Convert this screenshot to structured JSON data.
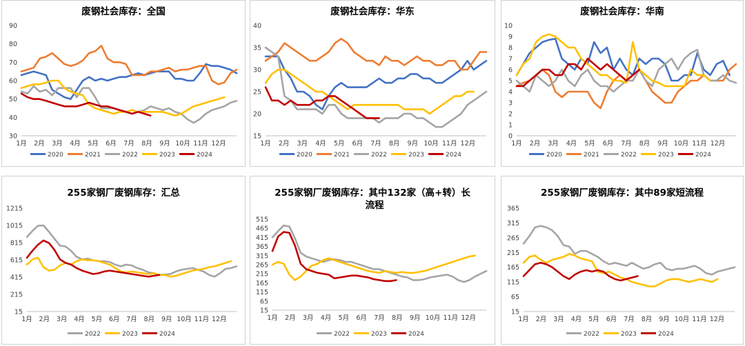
{
  "colors": {
    "series": {
      "2020": "#4472C4",
      "2021": "#ED7D31",
      "2022": "#A5A5A5",
      "2023": "#FFC000",
      "2024": "#C00000"
    },
    "grid": "#d9d9d9",
    "text": "#404040"
  },
  "chart_data": [
    {
      "type": "line",
      "title": "废钢社会库存：全国",
      "x_ticks": [
        "1月",
        "2月",
        "3月",
        "4月",
        "5月",
        "6月",
        "7月",
        "8月",
        "9月",
        "10月",
        "11月",
        "12月"
      ],
      "ylim": [
        30,
        90
      ],
      "y_ticks": [
        30,
        40,
        50,
        60,
        70,
        80,
        90
      ],
      "legend_position": "bottom",
      "grid": false,
      "series": [
        {
          "name": "2020",
          "values": [
            63,
            64,
            65,
            64,
            63,
            55,
            53,
            51,
            50,
            55,
            60,
            62,
            60,
            61,
            60,
            61,
            62,
            62,
            63,
            64,
            63,
            64,
            65,
            65,
            65,
            61,
            61,
            60,
            60,
            64,
            69,
            68,
            68,
            67,
            66,
            64
          ]
        },
        {
          "name": "2021",
          "values": [
            65,
            66,
            67,
            72,
            73,
            75,
            72,
            69,
            68,
            69,
            71,
            75,
            76,
            79,
            72,
            70,
            70,
            69,
            63,
            63,
            63,
            65,
            65,
            66,
            67,
            65,
            66,
            66,
            67,
            68,
            68,
            60,
            58,
            59,
            64,
            66
          ]
        },
        {
          "name": "2022",
          "values": [
            54,
            53,
            57,
            54,
            55,
            52,
            56,
            56,
            56,
            51,
            56,
            56,
            51,
            45,
            45,
            45,
            44,
            43,
            42,
            43,
            44,
            46,
            45,
            44,
            45,
            43,
            42,
            39,
            37,
            39,
            42,
            44,
            45,
            46,
            48,
            49
          ]
        },
        {
          "name": "2023",
          "values": [
            56,
            57,
            58,
            58,
            59,
            60,
            60,
            56,
            54,
            53,
            52,
            47,
            45,
            44,
            43,
            42,
            43,
            43,
            44,
            43,
            43,
            43,
            43,
            43,
            42,
            41,
            42,
            44,
            46,
            47,
            48,
            49,
            50,
            51
          ]
        },
        {
          "name": "2024",
          "values": [
            53,
            51,
            50,
            50,
            49,
            48,
            47,
            46,
            46,
            46,
            47,
            48,
            47,
            46,
            46,
            45,
            44,
            43,
            42,
            43,
            42,
            41
          ]
        }
      ]
    },
    {
      "type": "line",
      "title": "废钢社会库存：华东",
      "x_ticks": [
        "1月",
        "2月",
        "3月",
        "4月",
        "5月",
        "6月",
        "7月",
        "8月",
        "9月",
        "10月",
        "11月",
        "12月"
      ],
      "ylim": [
        15,
        40
      ],
      "y_ticks": [
        15,
        20,
        25,
        30,
        35,
        40
      ],
      "legend_position": "bottom",
      "grid": false,
      "series": [
        {
          "name": "2020",
          "values": [
            33,
            33,
            33,
            30,
            28,
            25,
            25,
            24,
            22,
            21,
            24,
            26,
            27,
            26,
            26,
            26,
            26,
            27,
            28,
            27,
            27,
            28,
            28,
            29,
            29,
            28,
            28,
            27,
            27,
            28,
            29,
            30,
            32,
            30,
            31,
            32
          ]
        },
        {
          "name": "2021",
          "values": [
            32,
            33,
            34,
            36,
            35,
            34,
            33,
            32,
            32,
            33,
            34,
            36,
            37,
            36,
            34,
            33,
            32,
            32,
            31,
            33,
            32,
            32,
            31,
            32,
            33,
            32,
            32,
            31,
            31,
            32,
            32,
            30,
            30,
            32,
            34,
            34
          ]
        },
        {
          "name": "2022",
          "values": [
            35,
            34,
            33,
            24,
            23,
            21,
            21,
            21,
            21,
            20,
            22,
            22,
            20,
            19,
            19,
            19,
            19,
            19,
            18,
            19,
            19,
            19,
            20,
            20,
            19,
            19,
            18,
            17,
            17,
            18,
            19,
            20,
            22,
            23,
            24,
            25
          ]
        },
        {
          "name": "2023",
          "values": [
            27,
            29,
            30,
            30,
            29,
            28,
            27,
            26,
            25,
            25,
            24,
            23,
            22,
            21,
            22,
            22,
            22,
            22,
            22,
            22,
            22,
            22,
            21,
            21,
            21,
            21,
            20,
            21,
            22,
            23,
            24,
            24,
            25,
            25
          ]
        },
        {
          "name": "2024",
          "values": [
            26,
            23,
            23,
            22,
            23,
            22,
            22,
            22,
            23,
            23,
            24,
            24,
            23,
            22,
            21,
            20,
            19,
            19,
            19
          ]
        }
      ]
    },
    {
      "type": "line",
      "title": "废钢社会库存：华南",
      "x_ticks": [
        "1月",
        "2月",
        "3月",
        "4月",
        "5月",
        "6月",
        "7月",
        "8月",
        "9月",
        "10月",
        "11月",
        "12月"
      ],
      "ylim": [
        0,
        10
      ],
      "y_ticks": [
        0,
        1,
        2,
        3,
        4,
        5,
        6,
        7,
        8,
        9,
        10
      ],
      "legend_position": "bottom",
      "grid": false,
      "series": [
        {
          "name": "2020",
          "values": [
            5.5,
            6.5,
            7.5,
            8.0,
            8.5,
            8.7,
            8.8,
            7.0,
            6.5,
            6.0,
            7.0,
            6.5,
            8.5,
            7.5,
            8.0,
            6.0,
            7.0,
            6.0,
            5.5,
            7.0,
            6.5,
            7.0,
            7.0,
            6.5,
            5.0,
            5.0,
            5.5,
            5.5,
            7.5,
            6.0,
            5.5,
            6.5,
            6.8,
            5.5
          ]
        },
        {
          "name": "2021",
          "values": [
            4.5,
            4.8,
            5.0,
            5.5,
            6.0,
            5.5,
            4.0,
            3.5,
            4.0,
            4.0,
            4.0,
            4.0,
            3.0,
            2.5,
            4.0,
            5.0,
            5.5,
            5.0,
            5.5,
            6.0,
            5.0,
            4.0,
            3.5,
            3.0,
            3.0,
            4.0,
            4.5,
            5.0,
            5.0,
            5.5,
            5.0,
            5.0,
            5.0,
            6.0,
            6.5
          ]
        },
        {
          "name": "2022",
          "values": [
            5.0,
            4.5,
            4.0,
            5.5,
            5.0,
            4.5,
            5.0,
            6.0,
            5.0,
            4.5,
            5.5,
            6.0,
            5.0,
            4.5,
            4.5,
            4.0,
            4.5,
            5.0,
            5.0,
            6.0,
            5.0,
            4.5,
            6.0,
            6.5,
            7.0,
            6.0,
            7.0,
            7.5,
            7.8,
            5.5,
            5.0,
            5.0,
            5.5,
            5.0,
            4.8
          ]
        },
        {
          "name": "2023",
          "values": [
            5.5,
            6.5,
            7.0,
            8.5,
            9.0,
            9.2,
            9.0,
            8.5,
            8.0,
            8.0,
            7.0,
            6.5,
            6.0,
            5.5,
            5.5,
            5.0,
            5.0,
            4.8,
            8.5,
            6.0,
            5.5,
            5.0,
            4.8,
            4.5,
            4.5,
            4.5,
            4.5,
            6.0,
            5.5,
            5.5,
            5.0
          ]
        },
        {
          "name": "2024",
          "values": [
            4.5,
            4.5,
            5.0,
            5.5,
            6.0,
            6.0,
            5.5,
            5.5,
            6.5,
            6.5,
            6.0,
            7.0,
            6.5,
            6.0,
            6.5,
            6.0,
            5.5,
            5.0,
            5.5,
            6.0
          ]
        }
      ]
    },
    {
      "type": "line",
      "title": "255家钢厂废钢库存：汇总",
      "x_ticks": [
        "1月",
        "2月",
        "3月",
        "4月",
        "5月",
        "6月",
        "7月",
        "8月",
        "9月",
        "10月",
        "11月",
        "12月"
      ],
      "ylim": [
        15,
        1215
      ],
      "y_ticks": [
        15,
        215,
        415,
        615,
        815,
        1015,
        1215
      ],
      "y_tick_labels": [
        "15",
        "215",
        "415",
        "615",
        "815",
        "1015",
        "1215"
      ],
      "legend_position": "bottom",
      "grid": false,
      "series": [
        {
          "name": "2022",
          "values": [
            880,
            950,
            1010,
            1015,
            940,
            860,
            780,
            770,
            720,
            650,
            620,
            630,
            610,
            600,
            600,
            590,
            560,
            540,
            560,
            550,
            520,
            500,
            470,
            460,
            440,
            445,
            450,
            480,
            500,
            510,
            520,
            500,
            480,
            440,
            420,
            460,
            510,
            520,
            540
          ]
        },
        {
          "name": "2023",
          "values": [
            560,
            620,
            640,
            530,
            490,
            500,
            550,
            580,
            560,
            600,
            620,
            610,
            610,
            600,
            580,
            560,
            520,
            480,
            470,
            480,
            470,
            460,
            450,
            460,
            440,
            440,
            420,
            430,
            450,
            470,
            490,
            500,
            510,
            530,
            540,
            560,
            580,
            600
          ]
        },
        {
          "name": "2024",
          "values": [
            640,
            720,
            790,
            840,
            810,
            730,
            620,
            580,
            560,
            520,
            490,
            470,
            450,
            460,
            480,
            490,
            480,
            470,
            460,
            450,
            440,
            430,
            420,
            430,
            440
          ]
        }
      ]
    },
    {
      "type": "line",
      "title": "255家钢厂废钢库存：其中132家（高+转）长流程",
      "x_ticks": [
        "1月",
        "2月",
        "3月",
        "4月",
        "5月",
        "6月",
        "7月",
        "8月",
        "9月",
        "10月",
        "11月",
        "12月"
      ],
      "ylim": [
        15,
        515
      ],
      "y_ticks": [
        15,
        65,
        115,
        165,
        215,
        265,
        315,
        365,
        415,
        465,
        515
      ],
      "legend_position": "bottom",
      "grid": false,
      "series": [
        {
          "name": "2022",
          "values": [
            415,
            450,
            480,
            475,
            410,
            330,
            310,
            300,
            290,
            280,
            290,
            295,
            290,
            280,
            280,
            270,
            260,
            250,
            240,
            240,
            230,
            220,
            210,
            200,
            195,
            180,
            180,
            185,
            195,
            200,
            205,
            210,
            200,
            180,
            170,
            180,
            200,
            215,
            230
          ]
        },
        {
          "name": "2023",
          "values": [
            265,
            280,
            270,
            210,
            180,
            200,
            230,
            260,
            270,
            290,
            300,
            290,
            280,
            270,
            260,
            250,
            240,
            230,
            225,
            220,
            230,
            225,
            220,
            225,
            220,
            220,
            225,
            230,
            240,
            250,
            260,
            270,
            280,
            290,
            300,
            310,
            315
          ]
        },
        {
          "name": "2024",
          "values": [
            340,
            420,
            445,
            440,
            370,
            270,
            240,
            230,
            220,
            215,
            210,
            190,
            195,
            200,
            205,
            205,
            200,
            195,
            185,
            180,
            175,
            175,
            180
          ]
        }
      ]
    },
    {
      "type": "line",
      "title": "255家钢厂废钢库存：其中89家短流程",
      "x_ticks": [
        "1月",
        "2月",
        "3月",
        "4月",
        "5月",
        "6月",
        "7月",
        "8月",
        "9月",
        "10月",
        "11月",
        "12月"
      ],
      "ylim": [
        15,
        365
      ],
      "y_ticks": [
        15,
        65,
        115,
        165,
        215,
        265,
        315,
        365
      ],
      "legend_position": "bottom",
      "grid": false,
      "series": [
        {
          "name": "2022",
          "values": [
            245,
            270,
            300,
            305,
            300,
            290,
            270,
            240,
            235,
            210,
            220,
            220,
            210,
            200,
            185,
            175,
            180,
            175,
            170,
            180,
            170,
            160,
            165,
            175,
            180,
            160,
            155,
            160,
            160,
            165,
            170,
            160,
            145,
            140,
            150,
            155,
            160,
            165
          ]
        },
        {
          "name": "2023",
          "values": [
            180,
            200,
            205,
            190,
            180,
            190,
            195,
            200,
            210,
            205,
            195,
            190,
            185,
            150,
            145,
            150,
            140,
            130,
            125,
            115,
            110,
            105,
            100,
            100,
            110,
            120,
            125,
            125,
            120,
            115,
            120,
            125,
            120,
            115,
            125
          ]
        },
        {
          "name": "2024",
          "values": [
            135,
            155,
            175,
            180,
            175,
            165,
            150,
            135,
            125,
            140,
            150,
            155,
            150,
            155,
            150,
            135,
            125,
            120,
            125,
            130,
            135
          ]
        }
      ]
    }
  ]
}
